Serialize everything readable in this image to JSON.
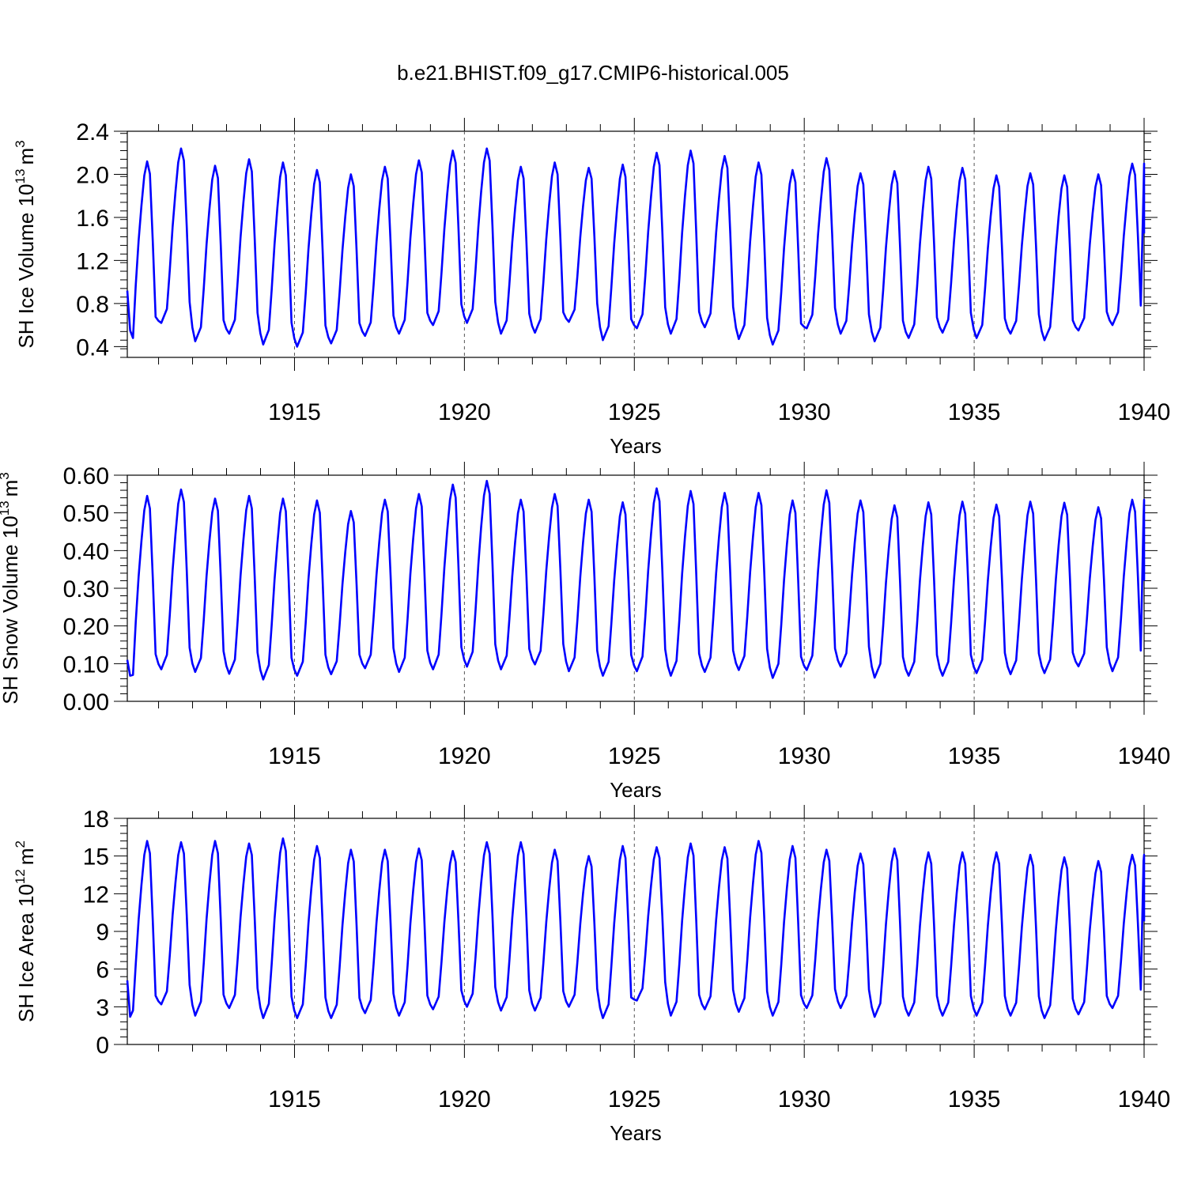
{
  "title": "b.e21.BHIST.f09_g17.CMIP6-historical.005",
  "line_color": "#0000ff",
  "chart_data": [
    {
      "type": "line",
      "ylabel": "SH Ice Volume 10",
      "ylabel_exponent": "13",
      "ylabel_unit": "m",
      "ylabel_unit_exponent": "3",
      "xlabel": "Years",
      "xlim": [
        1910.08,
        1940.0
      ],
      "ylim": [
        0.3,
        2.4
      ],
      "yticks": [
        0.4,
        0.8,
        1.2,
        1.6,
        2.0,
        2.4
      ],
      "ytick_labels": [
        "0.4",
        "0.8",
        "1.2",
        "1.6",
        "2.0",
        "2.4"
      ],
      "xticks": [
        1915,
        1920,
        1925,
        1930,
        1935,
        1940
      ],
      "xtick_labels": [
        "1915",
        "1920",
        "1925",
        "1930",
        "1935",
        "1940"
      ],
      "grid_x": [
        1915,
        1920,
        1925,
        1930,
        1935
      ],
      "x_start": 1910.08,
      "step": 0.0833,
      "start_values": [
        0.92,
        0.55,
        0.48
      ],
      "end_values": [
        1.85,
        2.1,
        1.9,
        1.45
      ],
      "cycle_min": [
        0.48,
        0.62,
        0.45,
        0.52,
        0.42,
        0.4,
        0.43,
        0.5,
        0.52,
        0.6,
        0.62,
        0.52,
        0.53,
        0.63,
        0.46,
        0.57,
        0.52,
        0.58,
        0.47,
        0.42,
        0.57,
        0.52,
        0.45,
        0.48,
        0.53,
        0.48,
        0.52,
        0.46,
        0.55,
        0.6
      ],
      "cycle_max": [
        2.12,
        2.24,
        2.08,
        2.14,
        2.11,
        2.04,
        2.0,
        2.07,
        2.13,
        2.22,
        2.24,
        2.07,
        2.11,
        2.06,
        2.09,
        2.2,
        2.22,
        2.17,
        2.11,
        2.04,
        2.15,
        2.01,
        2.03,
        2.07,
        2.06,
        1.99,
        2.01,
        1.99,
        2.0,
        2.1
      ]
    },
    {
      "type": "line",
      "ylabel": "SH Snow Volume 10",
      "ylabel_exponent": "13",
      "ylabel_unit": "m",
      "ylabel_unit_exponent": "3",
      "xlabel": "Years",
      "xlim": [
        1910.08,
        1940.0
      ],
      "ylim": [
        0.0,
        0.6
      ],
      "yticks": [
        0.0,
        0.1,
        0.2,
        0.3,
        0.4,
        0.5,
        0.6
      ],
      "ytick_labels": [
        "0.00",
        "0.10",
        "0.20",
        "0.30",
        "0.40",
        "0.50",
        "0.60"
      ],
      "xticks": [
        1915,
        1920,
        1925,
        1930,
        1935,
        1940
      ],
      "xtick_labels": [
        "1915",
        "1920",
        "1925",
        "1930",
        "1935",
        "1940"
      ],
      "grid_x": [
        1915,
        1920,
        1925,
        1930,
        1935
      ],
      "x_start": 1910.08,
      "step": 0.0833,
      "start_values": [
        0.11,
        0.068,
        0.07
      ],
      "end_values": [
        0.49,
        0.535,
        0.46,
        0.32
      ],
      "cycle_min": [
        0.068,
        0.085,
        0.078,
        0.073,
        0.058,
        0.068,
        0.072,
        0.088,
        0.078,
        0.085,
        0.092,
        0.085,
        0.098,
        0.08,
        0.068,
        0.08,
        0.068,
        0.078,
        0.083,
        0.062,
        0.083,
        0.092,
        0.063,
        0.068,
        0.068,
        0.075,
        0.072,
        0.075,
        0.093,
        0.08
      ],
      "cycle_max": [
        0.545,
        0.562,
        0.538,
        0.545,
        0.538,
        0.533,
        0.505,
        0.535,
        0.55,
        0.575,
        0.585,
        0.535,
        0.55,
        0.535,
        0.528,
        0.565,
        0.558,
        0.553,
        0.553,
        0.533,
        0.56,
        0.533,
        0.52,
        0.528,
        0.53,
        0.522,
        0.53,
        0.527,
        0.515,
        0.535
      ]
    },
    {
      "type": "line",
      "ylabel": "SH Ice Area 10",
      "ylabel_exponent": "12",
      "ylabel_unit": "m",
      "ylabel_unit_exponent": "2",
      "xlabel": "Years",
      "xlim": [
        1910.08,
        1940.0
      ],
      "ylim": [
        0,
        18
      ],
      "yticks": [
        0,
        3,
        6,
        9,
        12,
        15,
        18
      ],
      "ytick_labels": [
        "0",
        "3",
        "6",
        "9",
        "12",
        "15",
        "18"
      ],
      "xticks": [
        1915,
        1920,
        1925,
        1930,
        1935,
        1940
      ],
      "xtick_labels": [
        "1915",
        "1920",
        "1925",
        "1930",
        "1935",
        "1940"
      ],
      "grid_x": [
        1915,
        1920,
        1925,
        1930,
        1935
      ],
      "x_start": 1910.08,
      "step": 0.0833,
      "start_values": [
        5.1,
        2.2,
        2.7
      ],
      "end_values": [
        14.6,
        15.1,
        14.5,
        9.8
      ],
      "cycle_min": [
        2.2,
        3.2,
        2.3,
        2.9,
        2.1,
        2.1,
        2.1,
        2.5,
        2.3,
        2.8,
        3.0,
        2.7,
        2.7,
        3.0,
        2.1,
        3.5,
        2.3,
        2.8,
        2.6,
        2.3,
        2.9,
        2.9,
        2.2,
        2.3,
        2.3,
        2.3,
        2.3,
        2.1,
        2.4,
        2.9
      ],
      "cycle_max": [
        16.2,
        16.1,
        16.2,
        16.0,
        16.4,
        15.8,
        15.5,
        15.5,
        15.6,
        15.4,
        16.1,
        16.1,
        15.5,
        15.0,
        15.8,
        15.7,
        16.0,
        15.7,
        16.2,
        15.8,
        15.5,
        15.2,
        15.6,
        15.3,
        15.3,
        15.3,
        15.1,
        14.9,
        14.6,
        15.1
      ]
    }
  ]
}
